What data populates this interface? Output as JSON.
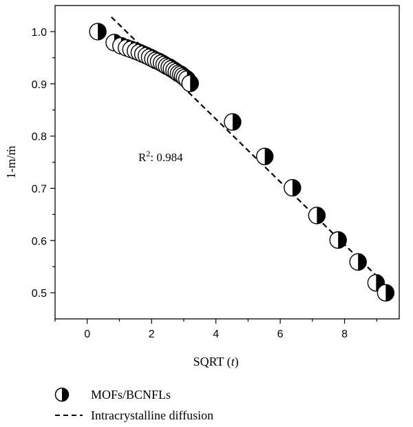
{
  "chart_data": {
    "type": "scatter",
    "xlabel_prefix": "SQRT (",
    "xlabel_var": "t",
    "xlabel_suffix": ")",
    "ylabel": "1-m/ṁ",
    "xlim": [
      -1,
      9.7
    ],
    "ylim": [
      0.45,
      1.05
    ],
    "xticks": [
      0,
      2,
      4,
      6,
      8
    ],
    "yticks": [
      0.5,
      0.6,
      0.7,
      0.8,
      0.9,
      1.0
    ],
    "yticks_minor": [
      0.55,
      0.65,
      0.75,
      0.85,
      0.95
    ],
    "xticks_minor": [
      -1,
      1,
      3,
      5,
      7,
      9
    ],
    "ytick_labels": [
      "0.5",
      "0.6",
      "0.7",
      "0.8",
      "0.9",
      "1.0"
    ],
    "xtick_labels": [
      "0",
      "2",
      "4",
      "6",
      "8"
    ],
    "series": [
      {
        "name": "MOFs/BCNFLs",
        "marker": "half-filled-circle",
        "x": [
          0.33,
          0.84,
          1.05,
          1.22,
          1.36,
          1.5,
          1.62,
          1.73,
          1.84,
          1.94,
          2.04,
          2.13,
          2.22,
          2.31,
          2.39,
          2.47,
          2.55,
          2.62,
          2.7,
          2.77,
          2.84,
          2.91,
          2.97,
          3.03,
          3.1,
          3.2,
          4.52,
          5.52,
          6.38,
          7.14,
          7.8,
          8.42,
          8.98,
          9.28
        ],
        "y": [
          1.0,
          0.979,
          0.973,
          0.969,
          0.966,
          0.963,
          0.96,
          0.957,
          0.954,
          0.951,
          0.948,
          0.945,
          0.943,
          0.94,
          0.937,
          0.934,
          0.932,
          0.929,
          0.926,
          0.923,
          0.92,
          0.918,
          0.915,
          0.912,
          0.909,
          0.901,
          0.827,
          0.761,
          0.701,
          0.648,
          0.601,
          0.559,
          0.519,
          0.5
        ]
      },
      {
        "name": "Intracrystalline diffusion",
        "style": "dashed",
        "x": [
          0.75,
          9.0
        ],
        "y": [
          1.028,
          0.532
        ]
      }
    ],
    "annotation": {
      "text_base": "R",
      "text_sup": "2",
      "text_rest": ": 0.984"
    },
    "legend_placement": "below",
    "grid": false
  },
  "legend": {
    "items": [
      {
        "label": "MOFs/BCNFLs"
      },
      {
        "label": "Intracrystalline diffusion"
      }
    ]
  }
}
